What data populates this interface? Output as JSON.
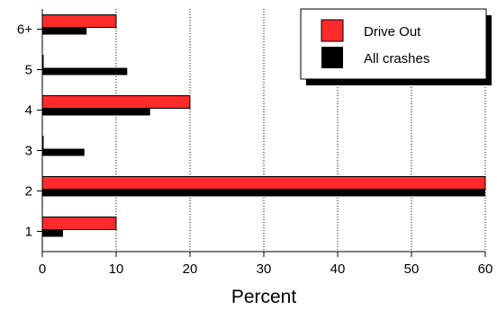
{
  "chart_data": {
    "type": "bar",
    "orientation": "horizontal",
    "categories": [
      "1",
      "2",
      "3",
      "4",
      "5",
      "6+"
    ],
    "series": [
      {
        "name": "Drive Out",
        "values": [
          10,
          60,
          0,
          20,
          0,
          10
        ],
        "color": "#ff2a2a"
      },
      {
        "name": "All crashes",
        "values": [
          2.8,
          60,
          5.7,
          14.6,
          11.5,
          6
        ],
        "color": "#000000"
      }
    ],
    "xlabel": "Percent",
    "ylabel": "",
    "xlim": [
      0,
      60
    ],
    "xticks": [
      "0",
      "10",
      "20",
      "30",
      "40",
      "50",
      "60"
    ],
    "grid": "vertical dotted",
    "legend_position": "top-right"
  }
}
